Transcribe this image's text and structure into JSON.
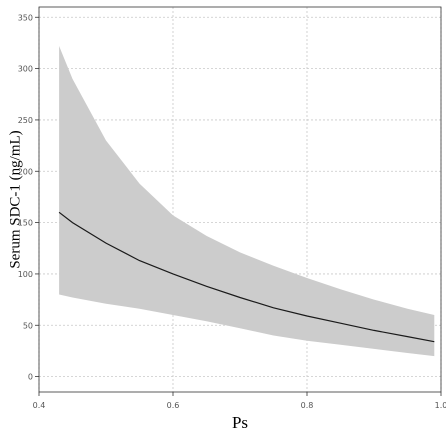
{
  "chart_data": {
    "type": "line",
    "title": "",
    "xlabel": "Ps",
    "ylabel": "Serum SDC-1 (ng/mL)",
    "xlim": [
      0.4,
      1.0
    ],
    "ylim": [
      -15,
      360
    ],
    "x_ticks": [
      0.4,
      0.6,
      0.8,
      1.0
    ],
    "x_tick_labels": [
      "0.4",
      "0.6",
      "0.8",
      "1.0"
    ],
    "y_ticks": [
      0,
      50,
      100,
      150,
      200,
      250,
      300,
      350
    ],
    "y_tick_labels": [
      "0",
      "50",
      "100",
      "150",
      "200",
      "250",
      "300",
      "350"
    ],
    "grid": true,
    "legend": "none",
    "series": [
      {
        "x": [
          0.43,
          0.45,
          0.5,
          0.55,
          0.6,
          0.65,
          0.7,
          0.75,
          0.8,
          0.85,
          0.9,
          0.95,
          0.99
        ],
        "y": [
          160,
          150,
          130,
          113,
          100,
          88,
          77,
          67,
          59,
          52,
          45,
          39,
          34
        ],
        "lower": [
          80,
          77,
          71,
          66,
          60,
          54,
          47,
          40,
          35,
          31,
          27,
          23,
          20
        ],
        "upper": [
          322,
          290,
          230,
          188,
          157,
          137,
          121,
          108,
          96,
          85,
          75,
          66,
          60
        ]
      }
    ],
    "colors": {
      "band": "#cccccc",
      "line": "#1a1a1a",
      "grid": "#c8c8c8"
    }
  }
}
